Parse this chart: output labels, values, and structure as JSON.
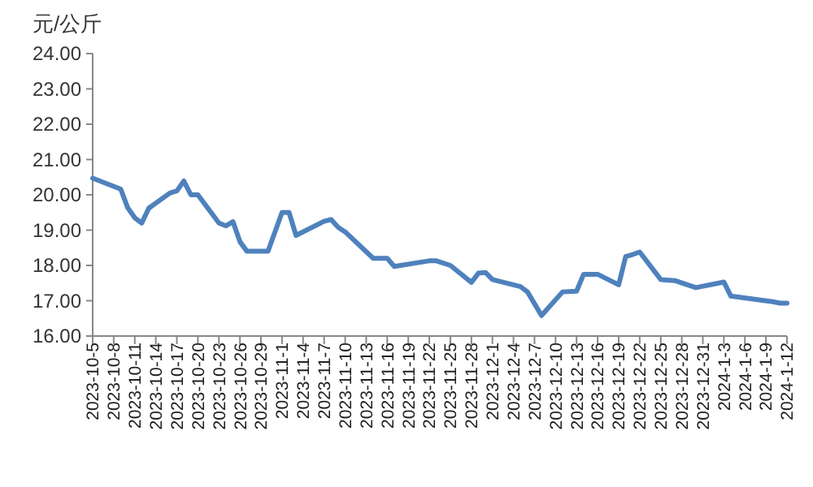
{
  "chart_data": {
    "type": "line",
    "ylabel": "元/公斤",
    "x": [
      "2023-10-05",
      "2023-10-09",
      "2023-10-10",
      "2023-10-11",
      "2023-10-12",
      "2023-10-13",
      "2023-10-16",
      "2023-10-17",
      "2023-10-18",
      "2023-10-19",
      "2023-10-20",
      "2023-10-23",
      "2023-10-24",
      "2023-10-25",
      "2023-10-26",
      "2023-10-27",
      "2023-10-30",
      "2023-11-01",
      "2023-11-02",
      "2023-11-03",
      "2023-11-07",
      "2023-11-08",
      "2023-11-09",
      "2023-11-10",
      "2023-11-14",
      "2023-11-16",
      "2023-11-17",
      "2023-11-22",
      "2023-11-23",
      "2023-11-25",
      "2023-11-28",
      "2023-11-29",
      "2023-11-30",
      "2023-12-01",
      "2023-12-05",
      "2023-12-06",
      "2023-12-08",
      "2023-12-11",
      "2023-12-13",
      "2023-12-14",
      "2023-12-16",
      "2023-12-19",
      "2023-12-20",
      "2023-12-21",
      "2023-12-22",
      "2023-12-25",
      "2023-12-27",
      "2023-12-30",
      "2024-01-03",
      "2024-01-04",
      "2024-01-07",
      "2024-01-10",
      "2024-01-11",
      "2024-01-12"
    ],
    "series": [
      {
        "color": "#4f81bd",
        "values": [
          20.47,
          20.16,
          19.63,
          19.35,
          19.2,
          19.62,
          20.05,
          20.11,
          20.39,
          20.0,
          20.0,
          19.2,
          19.12,
          19.24,
          18.67,
          18.4,
          18.4,
          19.5,
          19.5,
          18.85,
          19.25,
          19.3,
          19.08,
          18.95,
          18.2,
          18.2,
          17.97,
          18.13,
          18.13,
          18.0,
          17.52,
          17.78,
          17.8,
          17.6,
          17.4,
          17.25,
          16.58,
          17.25,
          17.27,
          17.75,
          17.75,
          17.45,
          18.25,
          18.31,
          18.38,
          17.6,
          17.57,
          17.37,
          17.53,
          17.13,
          17.05,
          16.97,
          16.93,
          16.93
        ]
      }
    ],
    "xlim": [
      "2023-10-05",
      "2024-01-12"
    ],
    "xticks": [
      {
        "value": "2023-10-05",
        "label": "2023-10-5"
      },
      {
        "value": "2023-10-08",
        "label": "2023-10-8"
      },
      {
        "value": "2023-10-11",
        "label": "2023-10-11"
      },
      {
        "value": "2023-10-14",
        "label": "2023-10-14"
      },
      {
        "value": "2023-10-17",
        "label": "2023-10-17"
      },
      {
        "value": "2023-10-20",
        "label": "2023-10-20"
      },
      {
        "value": "2023-10-23",
        "label": "2023-10-23"
      },
      {
        "value": "2023-10-26",
        "label": "2023-10-26"
      },
      {
        "value": "2023-10-29",
        "label": "2023-10-29"
      },
      {
        "value": "2023-11-01",
        "label": "2023-11-1"
      },
      {
        "value": "2023-11-04",
        "label": "2023-11-4"
      },
      {
        "value": "2023-11-07",
        "label": "2023-11-7"
      },
      {
        "value": "2023-11-10",
        "label": "2023-11-10"
      },
      {
        "value": "2023-11-13",
        "label": "2023-11-13"
      },
      {
        "value": "2023-11-16",
        "label": "2023-11-16"
      },
      {
        "value": "2023-11-19",
        "label": "2023-11-19"
      },
      {
        "value": "2023-11-22",
        "label": "2023-11-22"
      },
      {
        "value": "2023-11-25",
        "label": "2023-11-25"
      },
      {
        "value": "2023-11-28",
        "label": "2023-11-28"
      },
      {
        "value": "2023-12-01",
        "label": "2023-12-1"
      },
      {
        "value": "2023-12-04",
        "label": "2023-12-4"
      },
      {
        "value": "2023-12-07",
        "label": "2023-12-7"
      },
      {
        "value": "2023-12-10",
        "label": "2023-12-10"
      },
      {
        "value": "2023-12-13",
        "label": "2023-12-13"
      },
      {
        "value": "2023-12-16",
        "label": "2023-12-16"
      },
      {
        "value": "2023-12-19",
        "label": "2023-12-19"
      },
      {
        "value": "2023-12-22",
        "label": "2023-12-22"
      },
      {
        "value": "2023-12-25",
        "label": "2023-12-25"
      },
      {
        "value": "2023-12-28",
        "label": "2023-12-28"
      },
      {
        "value": "2023-12-31",
        "label": "2023-12-31"
      },
      {
        "value": "2024-01-03",
        "label": "2024-1-3"
      },
      {
        "value": "2024-01-06",
        "label": "2024-1-6"
      },
      {
        "value": "2024-01-09",
        "label": "2024-1-9"
      },
      {
        "value": "2024-01-12",
        "label": "2024-1-12"
      }
    ],
    "ylim": [
      16,
      24
    ],
    "yticks": [
      {
        "value": 16,
        "label": "16.00"
      },
      {
        "value": 17,
        "label": "17.00"
      },
      {
        "value": 18,
        "label": "18.00"
      },
      {
        "value": 19,
        "label": "19.00"
      },
      {
        "value": 20,
        "label": "20.00"
      },
      {
        "value": 21,
        "label": "21.00"
      },
      {
        "value": 22,
        "label": "22.00"
      },
      {
        "value": 23,
        "label": "23.00"
      },
      {
        "value": 24,
        "label": "24.00"
      }
    ],
    "grid": false,
    "marker": "none",
    "line_style": "solid"
  }
}
